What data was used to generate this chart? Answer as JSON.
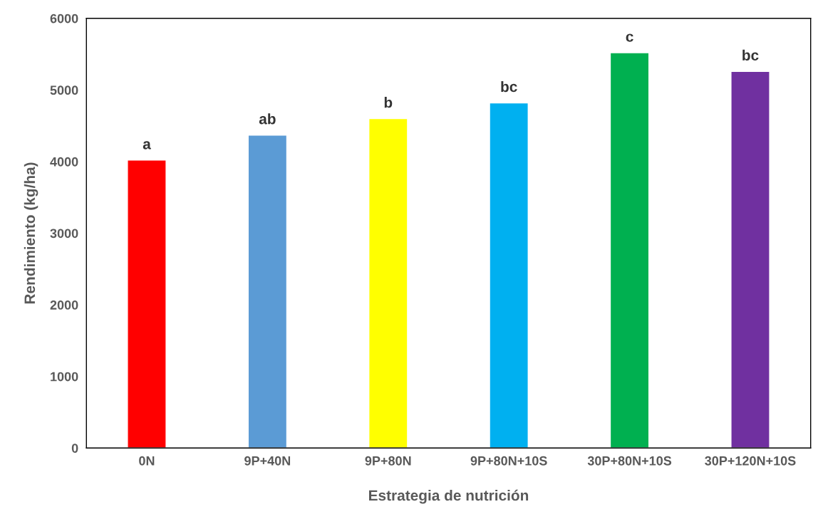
{
  "chart_data": {
    "type": "bar",
    "xlabel": "Estrategia de nutrición",
    "ylabel": "Rendimiento (kg/ha)",
    "categories": [
      "0N",
      "9P+40N",
      "9P+80N",
      "9P+80N+10S",
      "30P+80N+10S",
      "30P+120N+10S"
    ],
    "values": [
      4020,
      4370,
      4600,
      4820,
      5520,
      5260
    ],
    "colors": [
      "#ff0000",
      "#5b9bd5",
      "#ffff00",
      "#00b0f0",
      "#00b050",
      "#7030a0"
    ],
    "ylim": [
      0,
      6000
    ],
    "yticks": [
      0,
      1000,
      2000,
      3000,
      4000,
      5000,
      6000
    ],
    "grid": false,
    "legend": false,
    "annotations": [
      {
        "text": "a",
        "x": "0N",
        "y": 4020
      },
      {
        "text": "ab",
        "x": "9P+40N",
        "y": 4370
      },
      {
        "text": "b",
        "x": "9P+80N",
        "y": 4600
      },
      {
        "text": "bc",
        "x": "9P+80N+10S",
        "y": 4820
      },
      {
        "text": "c",
        "x": "30P+80N+10S",
        "y": 5520
      },
      {
        "text": "bc",
        "x": "30P+120N+10S",
        "y": 5260
      }
    ]
  }
}
